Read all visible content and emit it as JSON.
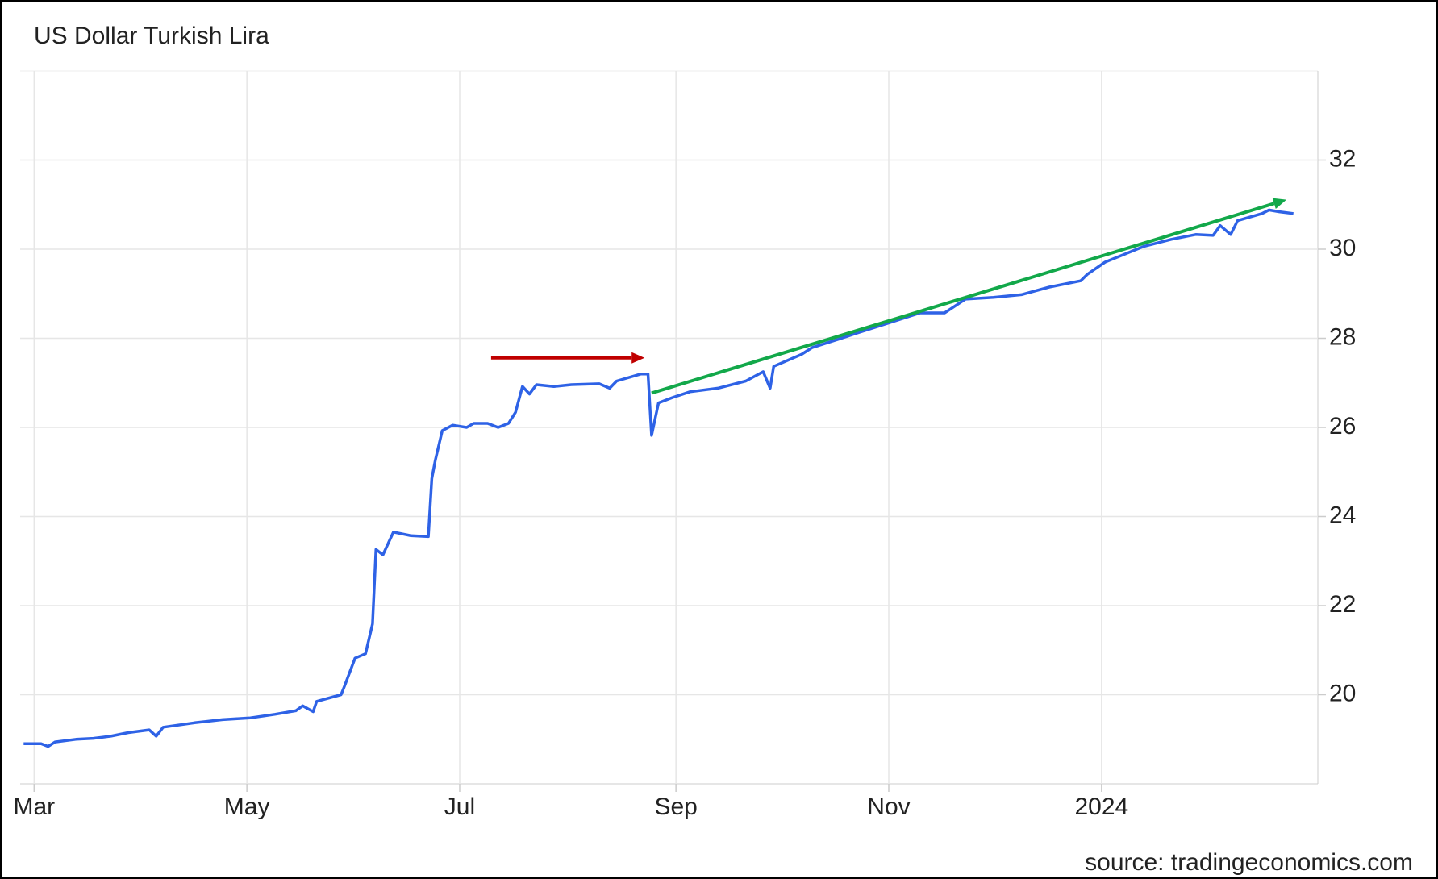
{
  "chart_data": {
    "type": "line",
    "title": "US Dollar Turkish Lira",
    "source": "source: tradingeconomics.com",
    "color": "#2e62e6",
    "x": [
      0,
      5,
      7,
      9,
      15,
      20,
      25,
      30,
      36,
      38,
      40,
      49,
      57,
      65,
      72,
      78,
      80,
      83,
      84,
      91,
      92,
      95,
      98,
      100,
      101,
      103,
      106,
      111,
      116,
      117,
      118,
      120,
      123,
      127,
      129,
      133,
      136,
      139,
      141,
      143,
      145,
      147,
      152,
      157,
      165,
      168,
      170,
      177,
      179,
      180,
      182,
      186,
      191,
      199,
      207,
      212,
      214,
      215,
      223,
      226,
      234,
      239,
      247,
      257,
      264,
      270,
      278,
      286,
      294,
      303,
      305,
      310,
      321,
      329,
      336,
      341,
      343,
      346,
      348,
      355,
      357,
      360,
      364
    ],
    "values": [
      18.9,
      18.9,
      18.84,
      18.94,
      19.0,
      19.02,
      19.07,
      19.15,
      19.21,
      19.07,
      19.27,
      19.37,
      19.44,
      19.48,
      19.56,
      19.64,
      19.75,
      19.62,
      19.85,
      20.0,
      20.2,
      20.82,
      20.92,
      21.59,
      23.26,
      23.14,
      23.65,
      23.57,
      23.55,
      24.85,
      25.26,
      25.93,
      26.05,
      26.0,
      26.09,
      26.09,
      26.0,
      26.09,
      26.34,
      26.92,
      26.75,
      26.96,
      26.92,
      26.96,
      26.98,
      26.88,
      27.04,
      27.2,
      27.2,
      25.82,
      26.55,
      26.67,
      26.8,
      26.88,
      27.04,
      27.25,
      26.88,
      27.37,
      27.64,
      27.79,
      27.99,
      28.12,
      28.32,
      28.57,
      28.57,
      28.88,
      28.92,
      28.98,
      29.15,
      29.29,
      29.44,
      29.71,
      30.06,
      30.22,
      30.33,
      30.31,
      30.53,
      30.33,
      30.64,
      30.8,
      30.88,
      30.84,
      30.8
    ],
    "xlim": [
      -1,
      371
    ],
    "xticks": [
      {
        "value": 3,
        "label": "Mar"
      },
      {
        "value": 64,
        "label": "May"
      },
      {
        "value": 125,
        "label": "Jul"
      },
      {
        "value": 187,
        "label": "Sep"
      },
      {
        "value": 248,
        "label": "Nov"
      },
      {
        "value": 309,
        "label": "2024"
      }
    ],
    "ylim": [
      18,
      34
    ],
    "yticks": [
      20,
      22,
      24,
      26,
      28,
      30,
      32
    ],
    "grid": true,
    "annotations": [
      {
        "color": "#c00000",
        "x": [
          134,
          178
        ],
        "y": [
          27.56,
          27.56
        ]
      },
      {
        "color": "#12a84a",
        "x": [
          180,
          362
        ],
        "y": [
          26.77,
          31.11
        ]
      }
    ]
  }
}
